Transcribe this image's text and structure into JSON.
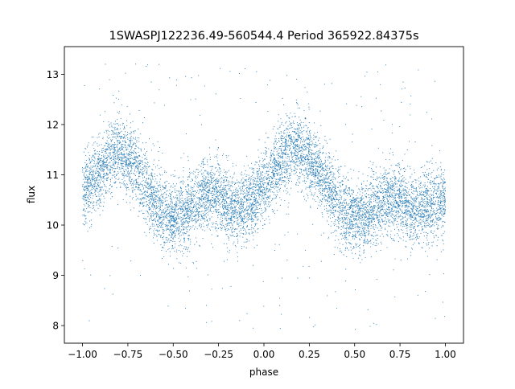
{
  "chart_data": {
    "type": "scatter",
    "title": "1SWASPJ122236.49-560544.4 Period 365922.84375s",
    "xlabel": "phase",
    "ylabel": "flux",
    "xlim": [
      -1.1,
      1.1
    ],
    "ylim": [
      7.65,
      13.55
    ],
    "x_ticks": [
      -1.0,
      -0.75,
      -0.5,
      -0.25,
      0.0,
      0.25,
      0.5,
      0.75,
      1.0
    ],
    "x_tick_labels": [
      "−1.00",
      "−0.75",
      "−0.50",
      "−0.25",
      "0.00",
      "0.25",
      "0.50",
      "0.75",
      "1.00"
    ],
    "y_ticks": [
      8,
      9,
      10,
      11,
      12,
      13
    ],
    "y_tick_labels": [
      "8",
      "9",
      "10",
      "11",
      "12",
      "13"
    ],
    "grid": false,
    "legend": "none",
    "marker_color": "#1f77b4",
    "phase_curve": {
      "x": [
        -1.0,
        -0.95,
        -0.9,
        -0.85,
        -0.8,
        -0.75,
        -0.7,
        -0.65,
        -0.6,
        -0.55,
        -0.5,
        -0.45,
        -0.4,
        -0.35,
        -0.3,
        -0.25,
        -0.2,
        -0.15,
        -0.1,
        -0.05,
        0.0,
        0.05,
        0.1,
        0.15,
        0.2,
        0.25,
        0.3,
        0.35,
        0.4,
        0.45,
        0.5,
        0.55,
        0.6,
        0.65,
        0.7,
        0.75,
        0.8,
        0.85,
        0.9,
        0.95,
        1.0
      ],
      "y": [
        10.6,
        10.85,
        11.1,
        11.35,
        11.45,
        11.35,
        11.1,
        10.8,
        10.45,
        10.25,
        10.15,
        10.2,
        10.35,
        10.55,
        10.65,
        10.6,
        10.4,
        10.3,
        10.35,
        10.55,
        10.75,
        11.0,
        11.3,
        11.5,
        11.5,
        11.35,
        11.1,
        10.8,
        10.45,
        10.25,
        10.15,
        10.15,
        10.3,
        10.45,
        10.55,
        10.5,
        10.4,
        10.35,
        10.4,
        10.45,
        10.5
      ]
    },
    "series": [
      {
        "marker": "point",
        "count": 9000,
        "scatter_std": 0.35,
        "outlier_range": [
          7.9,
          13.3
        ]
      }
    ]
  }
}
